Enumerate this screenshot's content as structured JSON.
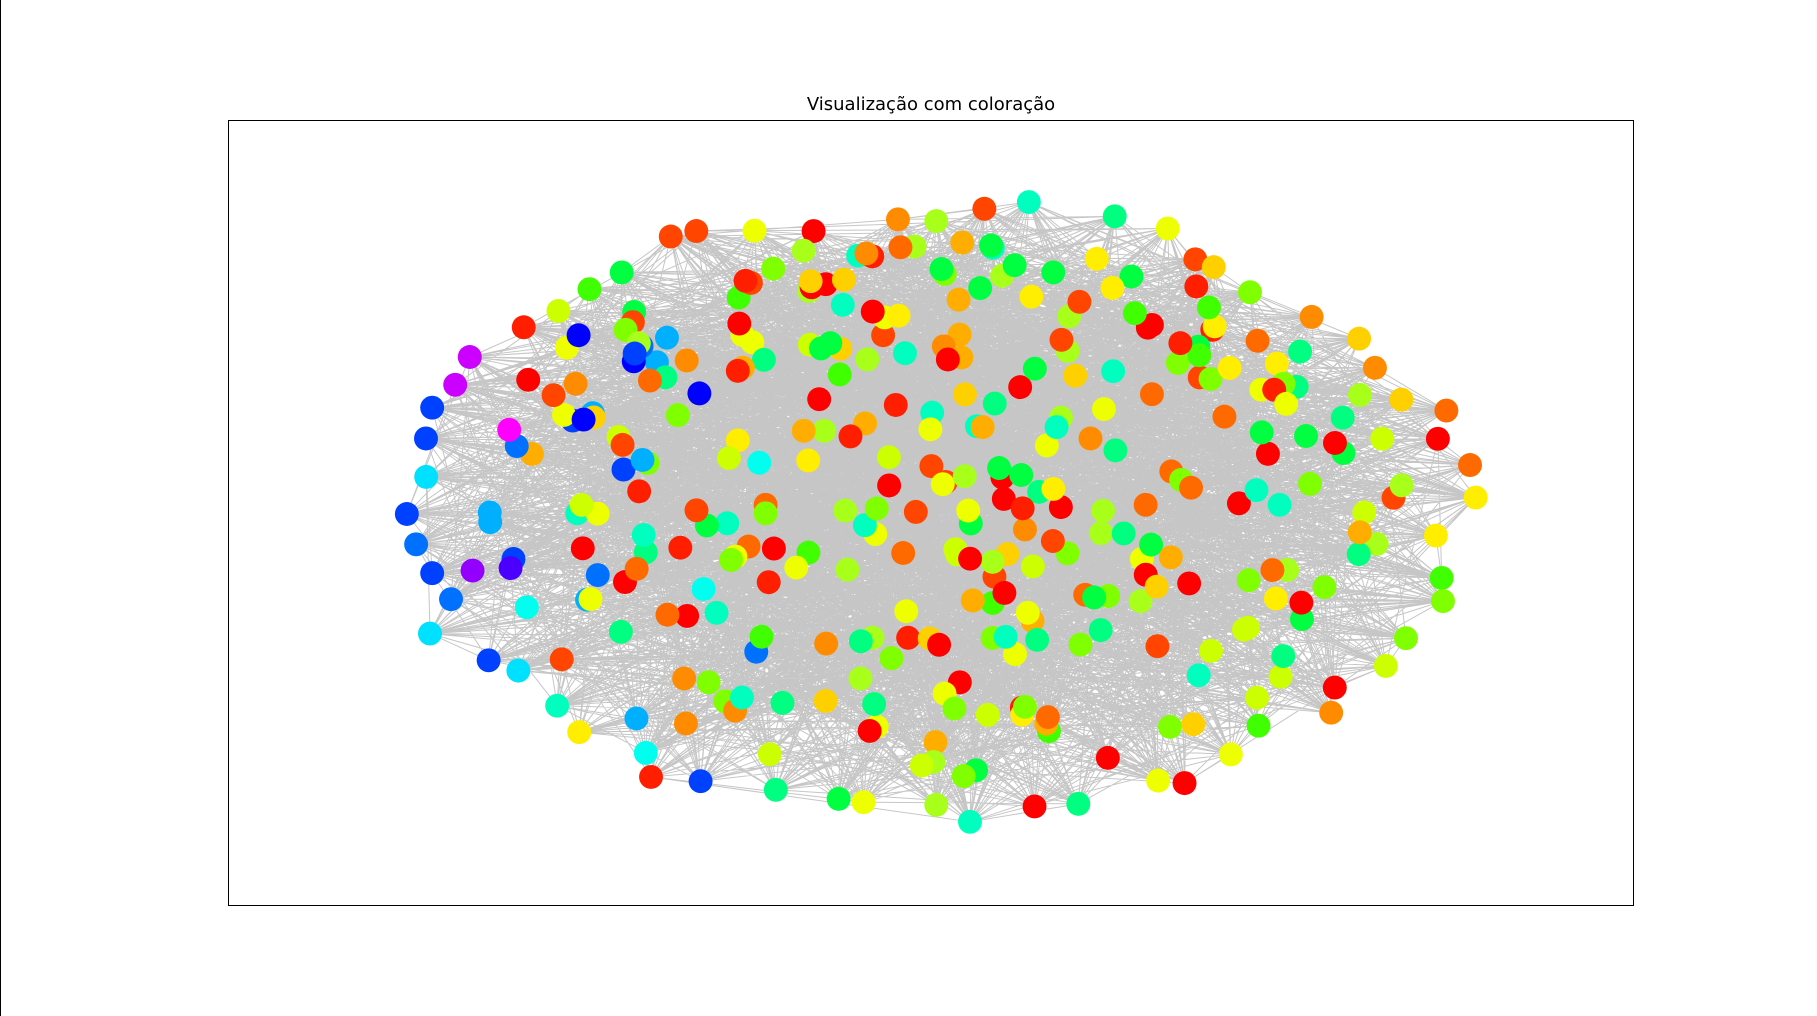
{
  "figure": {
    "title": "Visualização com coloração"
  },
  "graph": {
    "edge_color": "#808080",
    "node_count": 370,
    "palette": [
      "#ff0000",
      "#ff1f00",
      "#ff4500",
      "#ff6a00",
      "#ff8c00",
      "#ffae00",
      "#ffd000",
      "#ffee00",
      "#eeff00",
      "#ccff00",
      "#a8ff1a",
      "#80ff00",
      "#40ff00",
      "#00ff40",
      "#00ff80",
      "#00ffbf",
      "#00ffee",
      "#00e0ff",
      "#00b0ff",
      "#0070ff",
      "#0040ff",
      "#0000ff",
      "#4b00ff",
      "#9400ff",
      "#cc00ff",
      "#ff00ff"
    ]
  }
}
